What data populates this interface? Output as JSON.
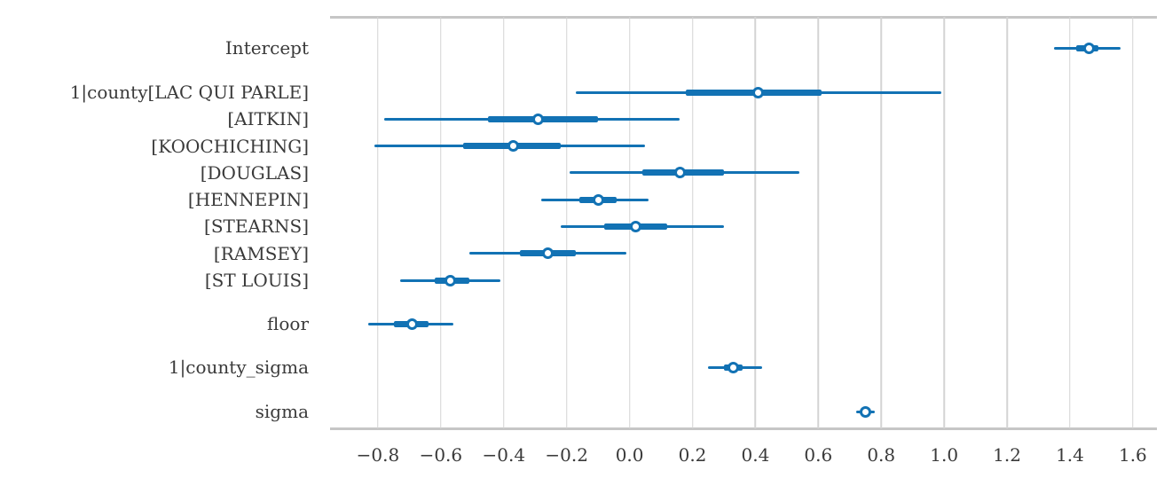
{
  "figure": {
    "background": "#ffffff",
    "accent_color": "#1272b4",
    "grid_color": "#d4d4d4",
    "spine_color": "#c6c6c6",
    "text_color": "#3a3a3a"
  },
  "chart_data": {
    "type": "scatter",
    "variant": "forest-plot-credible-intervals",
    "title": "",
    "xlabel": "",
    "ylabel": "",
    "xlim": [
      -0.95,
      1.67
    ],
    "grid": "vertical-only",
    "legend": "none",
    "x_ticks": [
      -0.8,
      -0.6,
      -0.4,
      -0.2,
      0.0,
      0.2,
      0.4,
      0.6,
      0.8,
      1.0,
      1.2,
      1.4,
      1.6
    ],
    "x_tick_labels": [
      "−0.8",
      "−0.6",
      "−0.4",
      "−0.2",
      "0.0",
      "0.2",
      "0.4",
      "0.6",
      "0.8",
      "1.0",
      "1.2",
      "1.4",
      "1.6"
    ],
    "rows": [
      {
        "label": "Intercept",
        "point": 1.46,
        "interval_thin": [
          1.35,
          1.56
        ],
        "interval_thick": [
          1.42,
          1.49
        ]
      },
      {
        "label": "1|county[LAC QUI PARLE]",
        "point": 0.41,
        "interval_thin": [
          -0.17,
          0.99
        ],
        "interval_thick": [
          0.18,
          0.61
        ]
      },
      {
        "label": "[AITKIN]",
        "point": -0.29,
        "interval_thin": [
          -0.78,
          0.16
        ],
        "interval_thick": [
          -0.45,
          -0.1
        ]
      },
      {
        "label": "[KOOCHICHING]",
        "point": -0.37,
        "interval_thin": [
          -0.81,
          0.05
        ],
        "interval_thick": [
          -0.53,
          -0.22
        ]
      },
      {
        "label": "[DOUGLAS]",
        "point": 0.16,
        "interval_thin": [
          -0.19,
          0.54
        ],
        "interval_thick": [
          0.04,
          0.3
        ]
      },
      {
        "label": "[HENNEPIN]",
        "point": -0.1,
        "interval_thin": [
          -0.28,
          0.06
        ],
        "interval_thick": [
          -0.16,
          -0.04
        ]
      },
      {
        "label": "[STEARNS]",
        "point": 0.02,
        "interval_thin": [
          -0.22,
          0.3
        ],
        "interval_thick": [
          -0.08,
          0.12
        ]
      },
      {
        "label": "[RAMSEY]",
        "point": -0.26,
        "interval_thin": [
          -0.51,
          -0.01
        ],
        "interval_thick": [
          -0.35,
          -0.17
        ]
      },
      {
        "label": "[ST LOUIS]",
        "point": -0.57,
        "interval_thin": [
          -0.73,
          -0.41
        ],
        "interval_thick": [
          -0.62,
          -0.51
        ]
      },
      {
        "label": "floor",
        "point": -0.69,
        "interval_thin": [
          -0.83,
          -0.56
        ],
        "interval_thick": [
          -0.75,
          -0.64
        ]
      },
      {
        "label": "1|county_sigma",
        "point": 0.33,
        "interval_thin": [
          0.25,
          0.42
        ],
        "interval_thick": [
          0.3,
          0.36
        ]
      },
      {
        "label": "sigma",
        "point": 0.75,
        "interval_thin": [
          0.72,
          0.78
        ],
        "interval_thick": [
          0.74,
          0.76
        ]
      }
    ]
  }
}
